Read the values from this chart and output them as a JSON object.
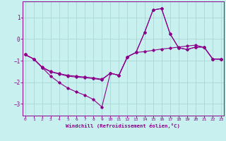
{
  "xlabel": "Windchill (Refroidissement éolien,°C)",
  "bg_color": "#c8f0ee",
  "grid_color": "#a8d8d5",
  "line_color": "#8B008B",
  "xlim": [
    -0.3,
    23.3
  ],
  "ylim": [
    -3.55,
    1.75
  ],
  "yticks": [
    1,
    0,
    -1,
    -2,
    -3
  ],
  "xticks": [
    0,
    1,
    2,
    3,
    4,
    5,
    6,
    7,
    8,
    9,
    10,
    11,
    12,
    13,
    14,
    15,
    16,
    17,
    18,
    19,
    20,
    21,
    22,
    23
  ],
  "curve1_x": [
    0,
    1,
    2,
    3,
    4,
    5,
    6,
    7,
    8,
    9,
    10,
    11,
    12,
    13,
    14,
    15,
    16,
    17,
    18,
    19,
    20,
    21,
    22,
    23
  ],
  "curve1_y": [
    -0.72,
    -0.92,
    -1.32,
    -1.72,
    -2.02,
    -2.27,
    -2.45,
    -2.6,
    -2.8,
    -3.15,
    -1.58,
    -1.68,
    -0.82,
    -0.62,
    -0.58,
    -0.52,
    -0.46,
    -0.42,
    -0.37,
    -0.32,
    -0.28,
    -0.38,
    -0.92,
    -0.93
  ],
  "curve2_x": [
    0,
    1,
    2,
    3,
    4,
    5,
    6,
    7,
    8,
    9,
    10,
    11,
    12,
    13,
    14,
    15,
    16,
    17,
    18,
    19,
    20,
    21,
    22,
    23
  ],
  "curve2_y": [
    -0.72,
    -0.92,
    -1.32,
    -1.52,
    -1.62,
    -1.72,
    -1.76,
    -1.79,
    -1.83,
    -1.89,
    -1.58,
    -1.68,
    -0.82,
    -0.62,
    0.3,
    1.35,
    1.42,
    0.25,
    -0.4,
    -0.48,
    -0.37,
    -0.37,
    -0.92,
    -0.93
  ],
  "curve3_x": [
    0,
    1,
    2,
    3,
    4,
    5,
    6,
    7,
    8,
    9,
    10,
    11,
    12,
    13,
    14,
    15,
    16,
    17,
    18,
    19,
    20,
    21,
    22,
    23
  ],
  "curve3_y": [
    -0.72,
    -0.92,
    -1.3,
    -1.5,
    -1.6,
    -1.68,
    -1.72,
    -1.76,
    -1.8,
    -1.86,
    -1.58,
    -1.68,
    -0.82,
    -0.62,
    0.3,
    1.35,
    1.42,
    0.25,
    -0.4,
    -0.48,
    -0.37,
    -0.37,
    -0.92,
    -0.93
  ]
}
